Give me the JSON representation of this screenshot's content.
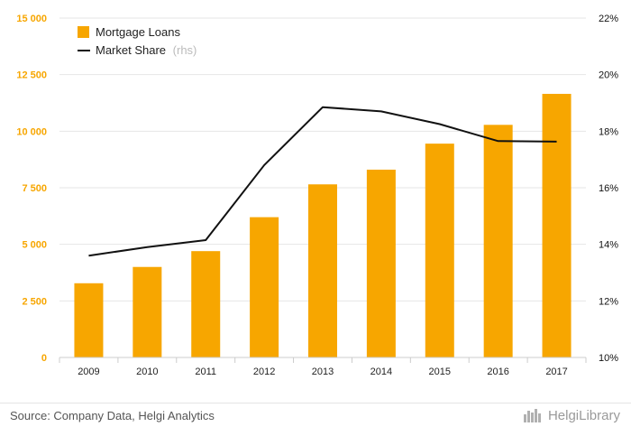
{
  "chart_data": {
    "type": "bar",
    "categories": [
      "2009",
      "2010",
      "2011",
      "2012",
      "2013",
      "2014",
      "2015",
      "2016",
      "2017"
    ],
    "series": [
      {
        "name": "Mortgage Loans",
        "type": "bar",
        "axis": "left",
        "color": "#f7a600",
        "values": [
          3280,
          4000,
          4700,
          6200,
          7650,
          8300,
          9450,
          10280,
          11650
        ]
      },
      {
        "name": "Market Share",
        "type": "line",
        "axis": "right",
        "color": "#111111",
        "values": [
          13.6,
          13.9,
          14.15,
          16.8,
          18.85,
          18.7,
          18.25,
          17.65,
          17.63
        ]
      }
    ],
    "y_left": {
      "ylim": [
        0,
        15000
      ],
      "ticks": [
        0,
        2500,
        5000,
        7500,
        10000,
        12500,
        15000
      ],
      "tick_labels": [
        "0",
        "2 500",
        "5 000",
        "7 500",
        "10 000",
        "12 500",
        "15 000"
      ]
    },
    "y_right": {
      "ylim": [
        10,
        22
      ],
      "ticks": [
        10,
        12,
        14,
        16,
        18,
        20,
        22
      ],
      "tick_labels": [
        "10%",
        "12%",
        "14%",
        "16%",
        "18%",
        "20%",
        "22%"
      ]
    },
    "legend": {
      "placement": "top-left",
      "items": [
        {
          "label": "Mortgage Loans",
          "suffix": ""
        },
        {
          "label": "Market Share",
          "suffix": "(rhs)"
        }
      ]
    },
    "grid": true
  },
  "footer": {
    "source": "Source: Company Data, Helgi Analytics",
    "brand": "HelgiLibrary"
  }
}
